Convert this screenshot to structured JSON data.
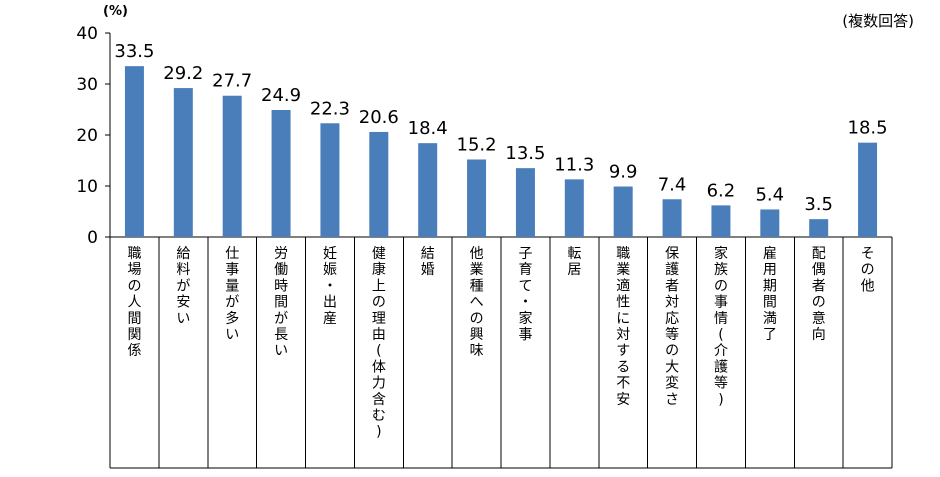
{
  "chart_data": {
    "type": "bar",
    "unit_label": "(%)",
    "note": "(複数回答)",
    "categories": [
      "職場の人間関係",
      "給料が安い",
      "仕事量が多い",
      "労働時間が長い",
      "妊娠・出産",
      "健康上の理由(体力含む)",
      "結婚",
      "他業種への興味",
      "子育て・家事",
      "転居",
      "職業適性に対する不安",
      "保護者対応等の大変さ",
      "家族の事情(介護等)",
      "雇用期間満了",
      "配偶者の意向",
      "その他"
    ],
    "values": [
      33.5,
      29.2,
      27.7,
      24.9,
      22.3,
      20.6,
      18.4,
      15.2,
      13.5,
      11.3,
      9.9,
      7.4,
      6.2,
      5.4,
      3.5,
      18.5
    ],
    "value_labels": [
      "33.5",
      "29.2",
      "27.7",
      "24.9",
      "22.3",
      "20.6",
      "18.4",
      "15.2",
      "13.5",
      "11.3",
      "9.9",
      "7.4",
      "6.2",
      "5.4",
      "3.5",
      "18.5"
    ],
    "ylim": [
      0,
      40
    ],
    "yticks": [
      "0",
      "10",
      "20",
      "30",
      "40"
    ],
    "bar_color": "#4a7ebb",
    "grid": false,
    "legend": "none"
  }
}
